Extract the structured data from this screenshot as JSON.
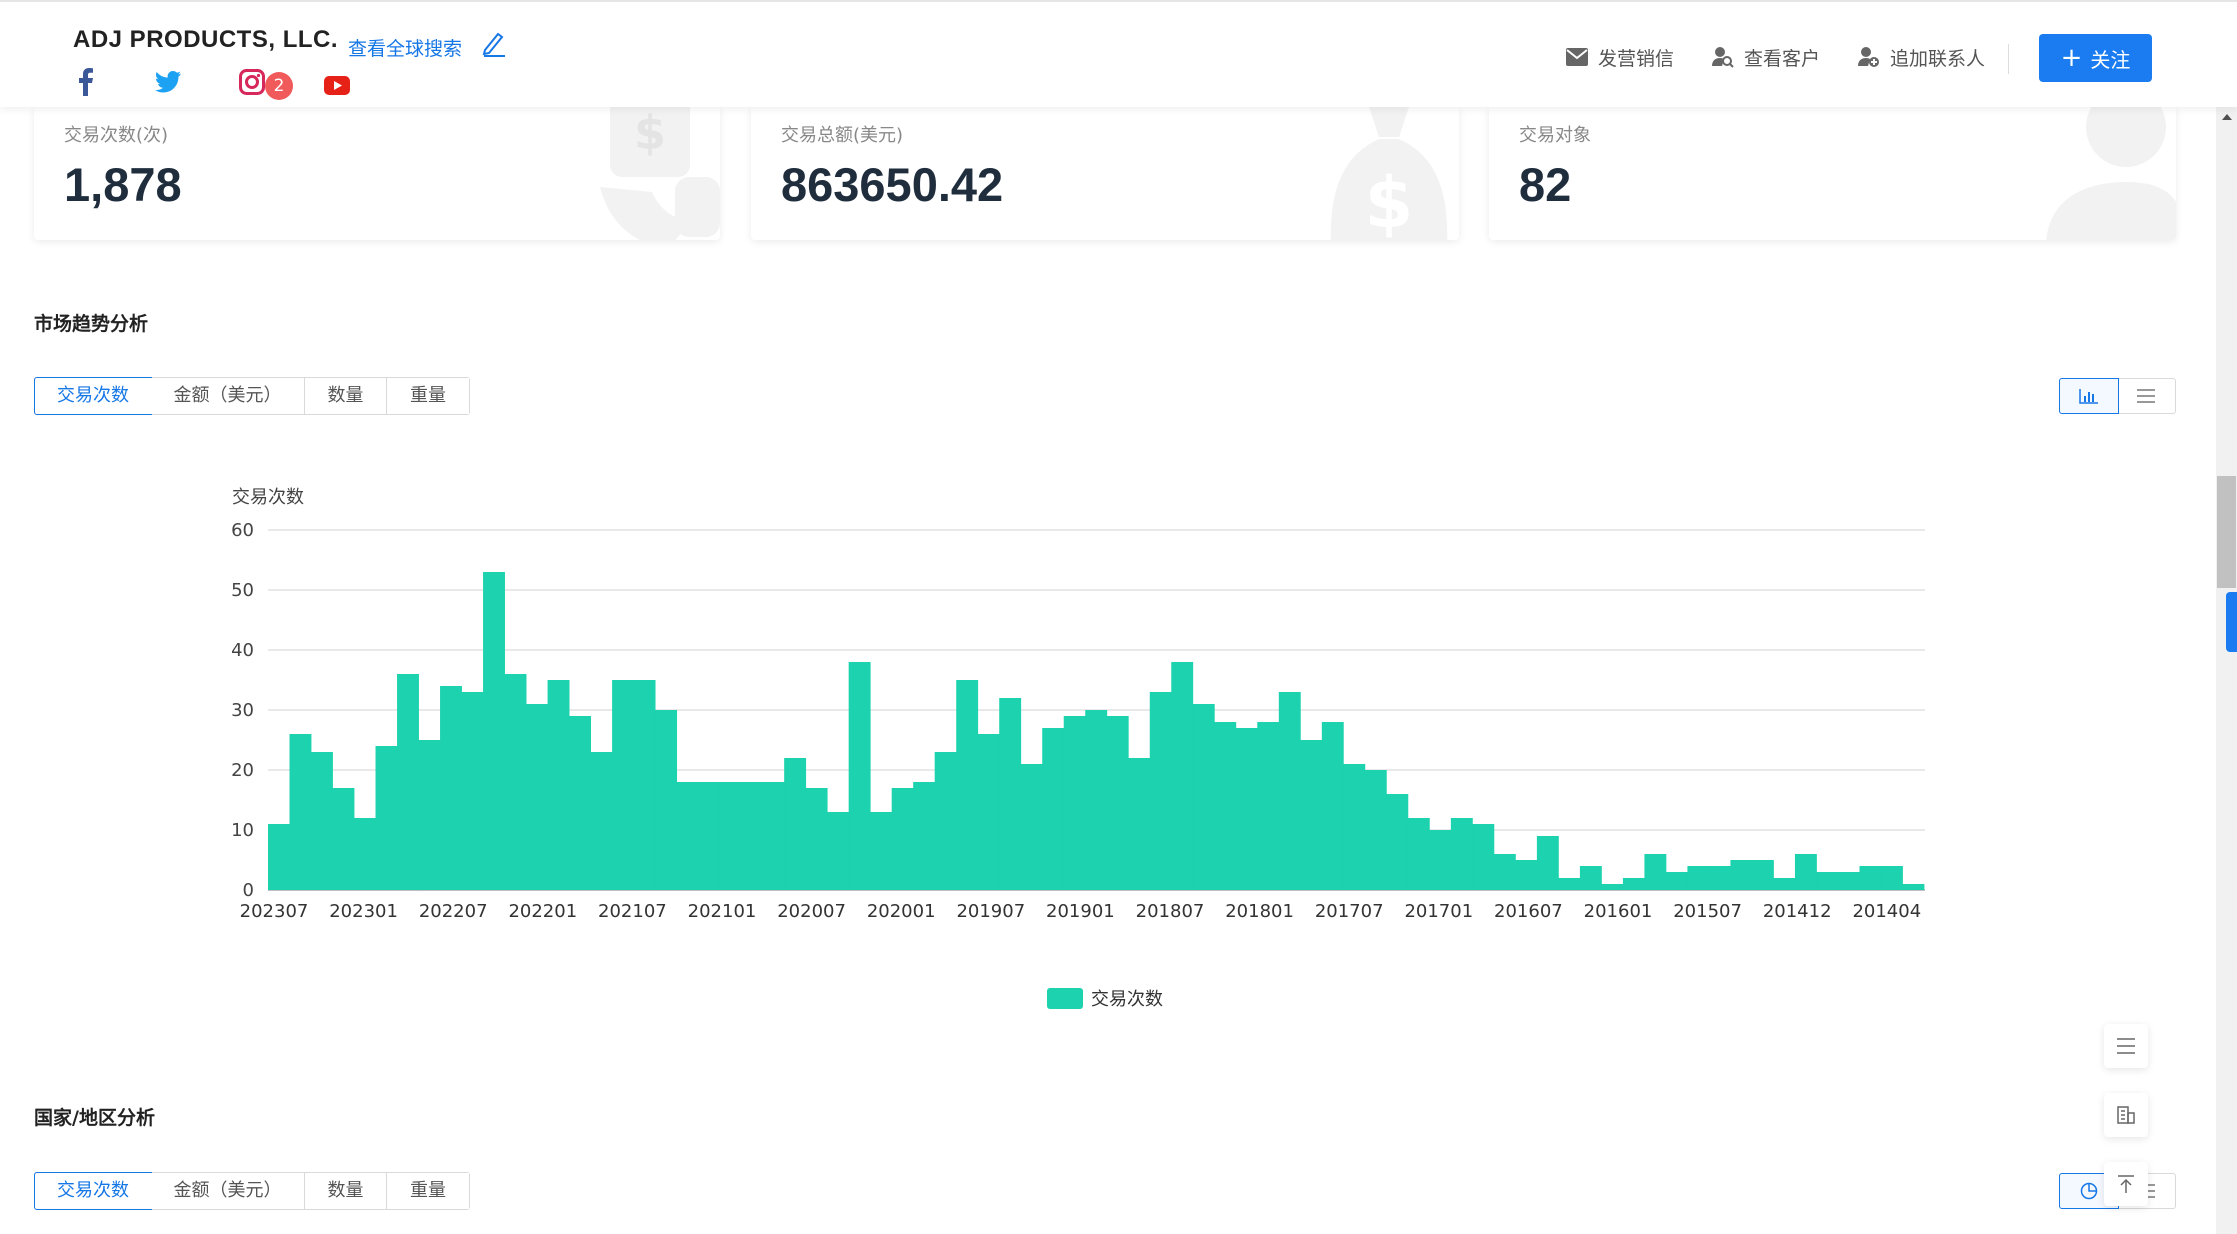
{
  "header": {
    "company": "ADJ PRODUCTS, LLC.",
    "global_search": "查看全球搜索",
    "instagram_badge": "2",
    "actions": {
      "send_message": "发营销信",
      "view_customers": "查看客户",
      "add_contact": "追加联系人"
    },
    "follow_button": "关注"
  },
  "stats": [
    {
      "label": "交易次数(次)",
      "value": "1,878"
    },
    {
      "label": "交易总额(美元)",
      "value": "863650.42"
    },
    {
      "label": "交易对象",
      "value": "82"
    }
  ],
  "market_section": {
    "title": "市场趋势分析",
    "tabs": [
      "交易次数",
      "金额（美元）",
      "数量",
      "重量"
    ],
    "active_tab": "交易次数"
  },
  "country_section": {
    "title": "国家/地区分析",
    "tabs": [
      "交易次数",
      "金额（美元）",
      "数量",
      "重量"
    ],
    "active_tab": "交易次数"
  },
  "colors": {
    "accent": "#1677e6",
    "bar": "#1dd2ae",
    "button": "#1a7cf0",
    "badge": "#f15a5a"
  },
  "chart_data": {
    "type": "bar",
    "ylabel": "交易次数",
    "ylim": [
      0,
      60
    ],
    "yticks": [
      0,
      10,
      20,
      30,
      40,
      50,
      60
    ],
    "grid": true,
    "legend": "bottom-center",
    "series": [
      {
        "name": "交易次数",
        "values": [
          11,
          26,
          23,
          17,
          12,
          24,
          36,
          25,
          34,
          33,
          53,
          36,
          31,
          35,
          29,
          23,
          35,
          35,
          30,
          18,
          18,
          18,
          18,
          18,
          22,
          17,
          13,
          38,
          13,
          17,
          18,
          23,
          35,
          26,
          32,
          21,
          27,
          29,
          30,
          29,
          22,
          33,
          38,
          31,
          28,
          27,
          28,
          33,
          25,
          28,
          21,
          20,
          16,
          12,
          10,
          12,
          11,
          6,
          5,
          9,
          2,
          4,
          1,
          2,
          6,
          3,
          4,
          4,
          5,
          5,
          2,
          6,
          3,
          3,
          4,
          4,
          1
        ]
      }
    ],
    "x_tick_labels": [
      "202307",
      "202301",
      "202207",
      "202201",
      "202107",
      "202101",
      "202007",
      "202001",
      "201907",
      "201901",
      "201807",
      "201801",
      "201707",
      "201701",
      "201607",
      "201601",
      "201507",
      "201412",
      "201404"
    ]
  }
}
